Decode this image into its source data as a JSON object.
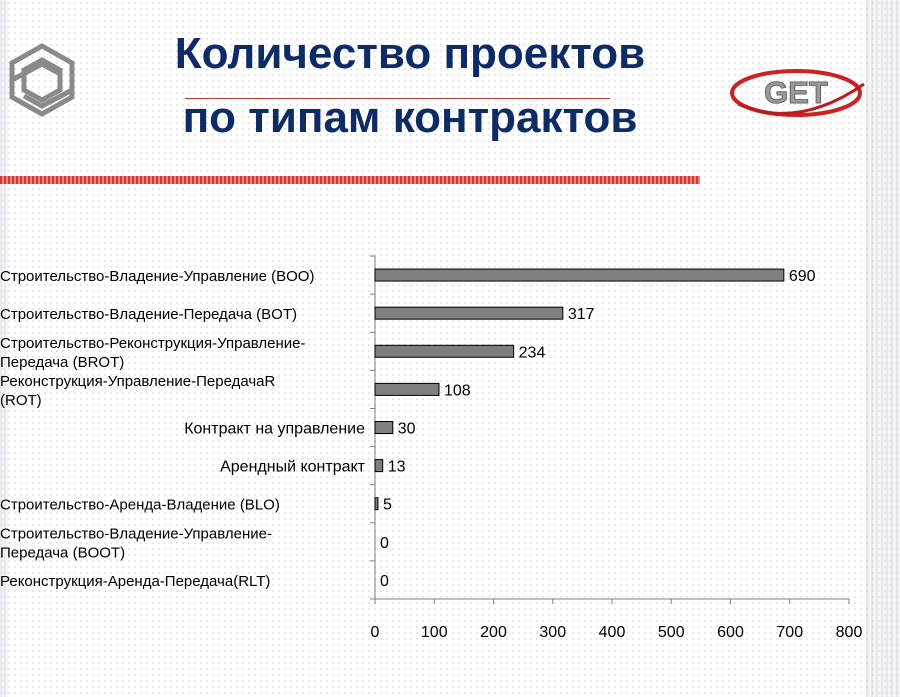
{
  "header": {
    "title_line1": "Количество проектов",
    "title_line2": "по типам контрактов",
    "logo_right_text": "GET"
  },
  "chart_data": {
    "type": "bar",
    "orientation": "horizontal",
    "categories": [
      [
        "Строительство-Владение-Управление (BOO)"
      ],
      [
        "Строительство-Владение-Передача (BOT)"
      ],
      [
        "Строительство-Реконструкция-Управление-",
        "Передача (BROT)"
      ],
      [
        "Реконструкция-Управление-ПередачаR",
        "(ROT)"
      ],
      [
        "Контракт на управление"
      ],
      [
        "Арендный контракт"
      ],
      [
        "Строительство-Аренда-Владение (BLO)"
      ],
      [
        "Строительство-Владение-Управление-",
        "Передача (BOOT)"
      ],
      [
        "Реконструкция-Аренда-Передача(RLT)"
      ]
    ],
    "values": [
      690,
      317,
      234,
      108,
      30,
      13,
      5,
      0,
      0
    ],
    "xlim": [
      0,
      800
    ],
    "xticks": [
      0,
      100,
      200,
      300,
      400,
      500,
      600,
      700,
      800
    ],
    "grid": false,
    "colors": {
      "bar": "#7f7f7f",
      "bar_outline": "#000000",
      "axis": "#808080"
    }
  }
}
